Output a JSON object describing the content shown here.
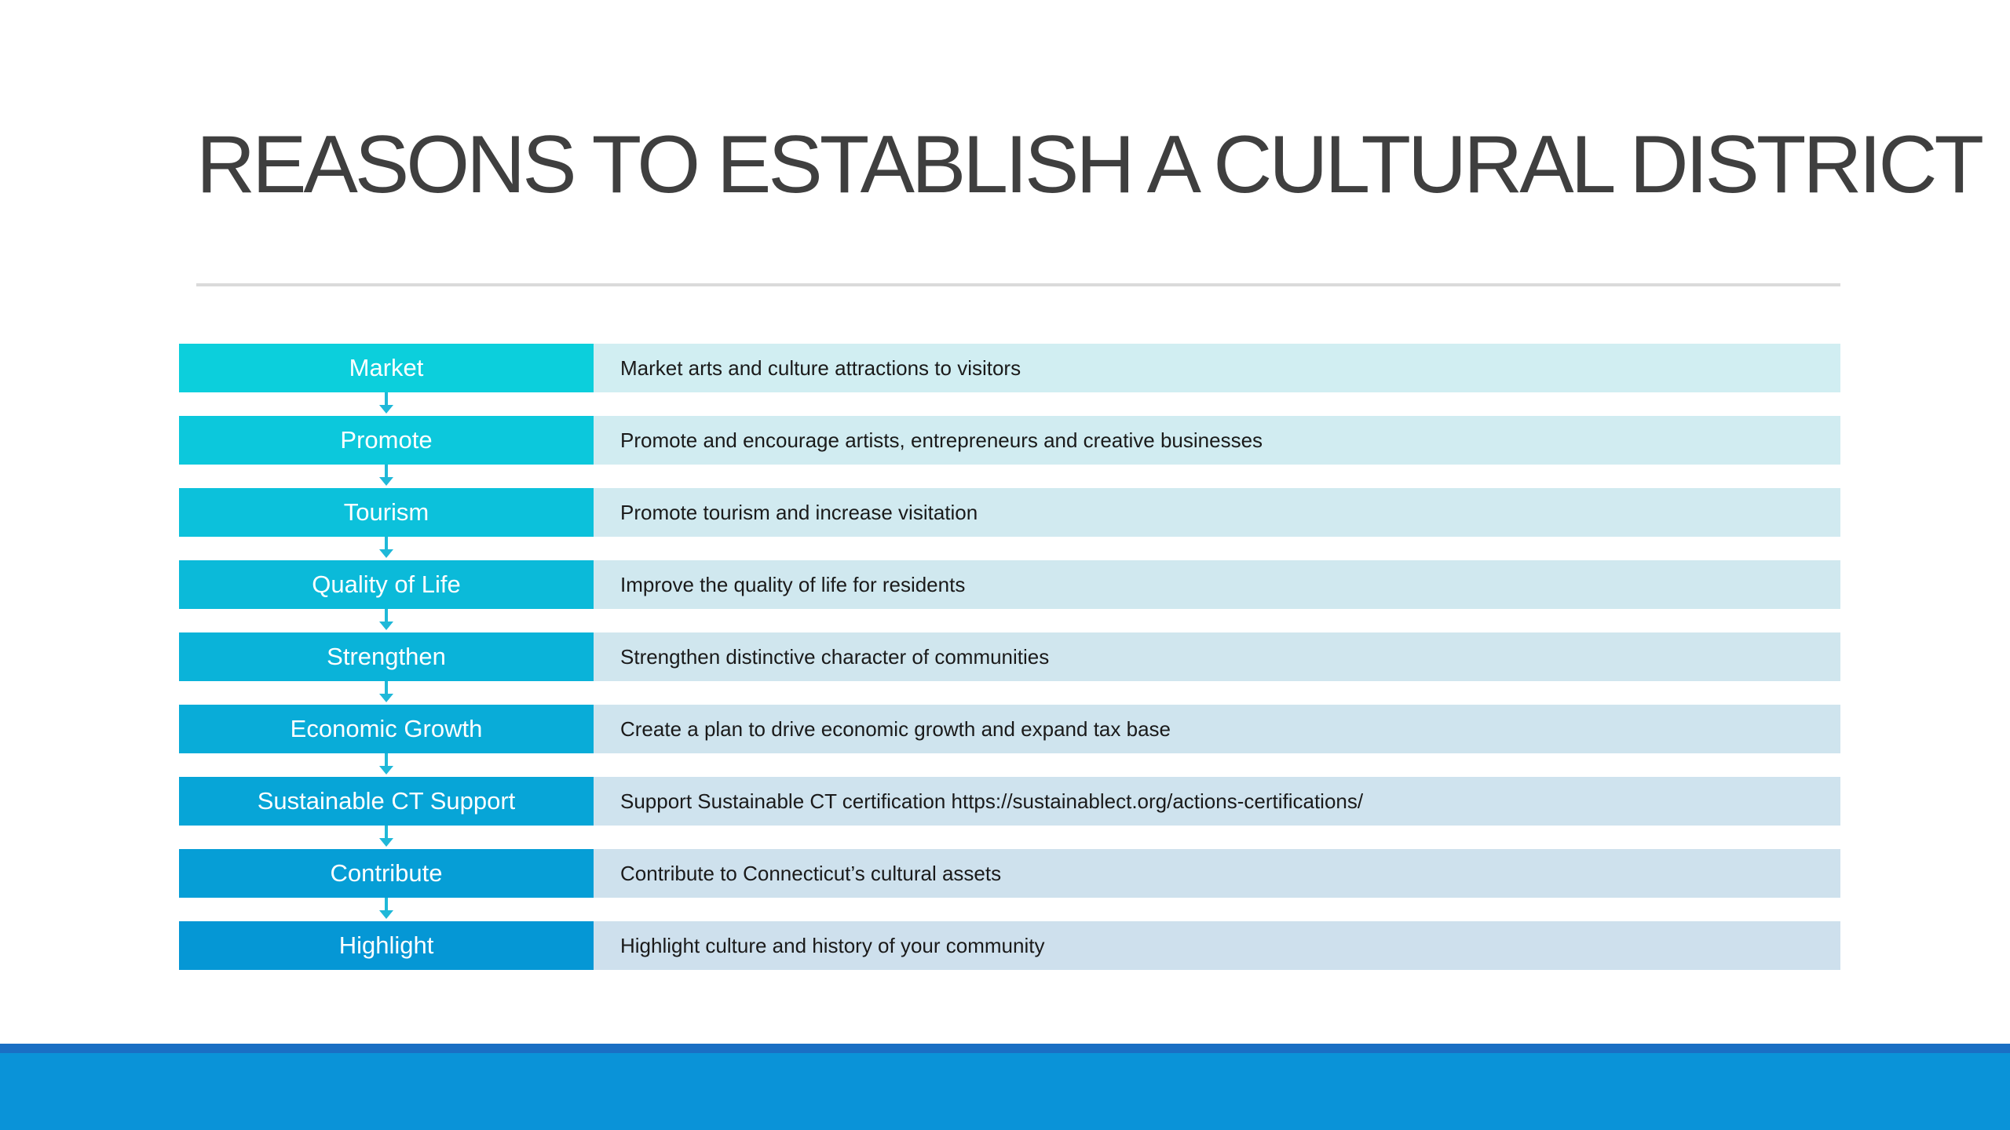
{
  "slide": {
    "title": "REASONS TO ESTABLISH A CULTURAL DISTRICT"
  },
  "items": [
    {
      "label": "Market",
      "description": "Market arts and culture attractions to visitors",
      "label_color": "#0ccfdc",
      "desc_color": "#d1eef2"
    },
    {
      "label": "Promote",
      "description": "Promote and encourage artists, entrepreneurs and creative businesses",
      "label_color": "#0cc8dc",
      "desc_color": "#d1ecf1"
    },
    {
      "label": "Tourism",
      "description": "Promote tourism and increase visitation",
      "label_color": "#0cc1db",
      "desc_color": "#d1eaf0"
    },
    {
      "label": "Quality of Life",
      "description": "Improve the quality of life for residents",
      "label_color": "#0bbad9",
      "desc_color": "#d0e8ef"
    },
    {
      "label": "Strengthen",
      "description": "Strengthen distinctive character of communities",
      "label_color": "#0ab3d9",
      "desc_color": "#d0e6ee"
    },
    {
      "label": "Economic Growth",
      "description": "Create a plan to drive economic growth and expand tax base",
      "label_color": "#09acd8",
      "desc_color": "#cfe4ee"
    },
    {
      "label": "Sustainable CT Support",
      "description": "Support Sustainable CT certification https://sustainablect.org/actions-certifications/",
      "label_color": "#07a5d7",
      "desc_color": "#cfe3ee"
    },
    {
      "label": "Contribute",
      "description": "Contribute to Connecticut’s cultural assets",
      "label_color": "#069ed6",
      "desc_color": "#cee1ed"
    },
    {
      "label": "Highlight",
      "description": "Highlight culture and history of your community",
      "label_color": "#0597d5",
      "desc_color": "#cee0ed"
    }
  ],
  "colors": {
    "title_text": "#3f3f3f",
    "rule": "#dadada",
    "connector": "#1fb8d8",
    "footer_stripe": "#1a6fc4",
    "footer_band": "#0a93d8"
  }
}
